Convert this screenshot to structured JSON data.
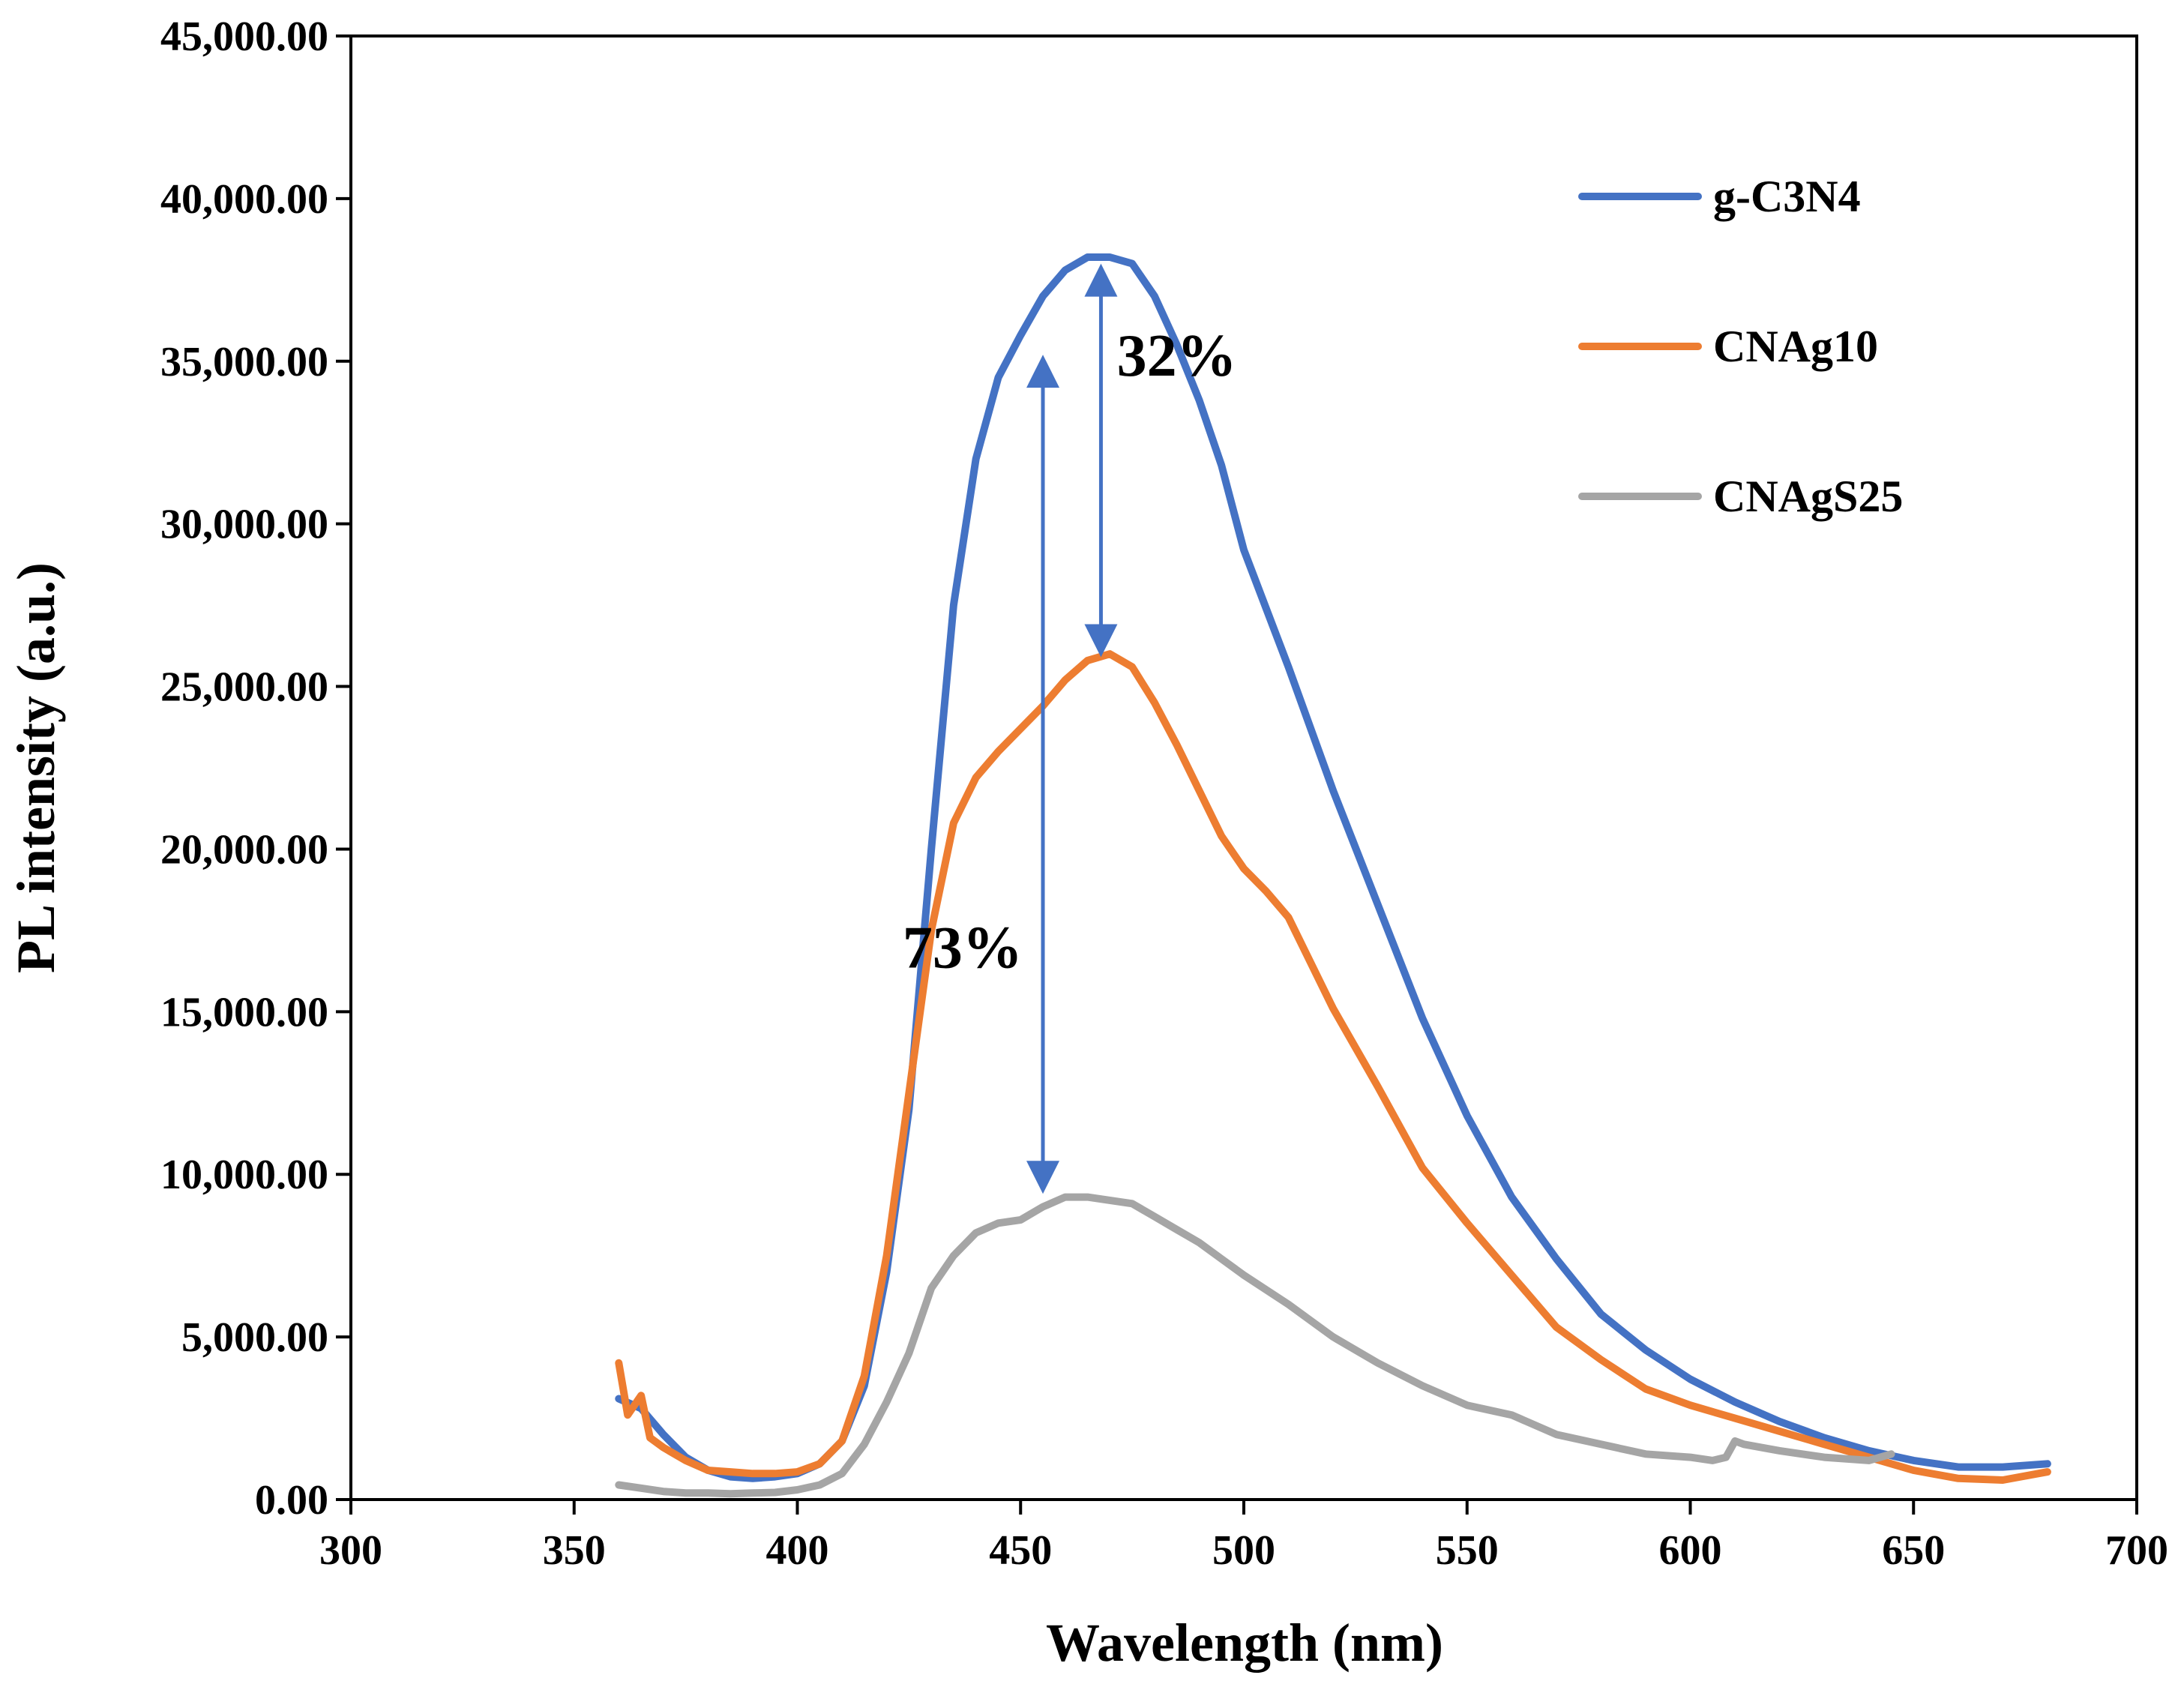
{
  "chart_data": {
    "type": "line",
    "title": "",
    "xlabel": "Wavelength (nm)",
    "ylabel": "PL intensity (a.u.)",
    "xlim": [
      300,
      700
    ],
    "ylim": [
      0,
      45000
    ],
    "xticks": [
      300,
      350,
      400,
      450,
      500,
      550,
      600,
      650,
      700
    ],
    "xtick_labels": [
      "300",
      "350",
      "400",
      "450",
      "500",
      "550",
      "600",
      "650",
      "700"
    ],
    "yticks": [
      0,
      5000,
      10000,
      15000,
      20000,
      25000,
      30000,
      35000,
      40000,
      45000
    ],
    "ytick_labels": [
      "0.00",
      "5,000.00",
      "10,000.00",
      "15,000.00",
      "20,000.00",
      "25,000.00",
      "30,000.00",
      "35,000.00",
      "40,000.00",
      "45,000.00"
    ],
    "grid": false,
    "legend_position": "top-right",
    "series": [
      {
        "name": "g-C3N4",
        "color": "#4472C4",
        "x": [
          360,
          365,
          370,
          375,
          380,
          385,
          390,
          395,
          400,
          405,
          410,
          415,
          420,
          425,
          430,
          435,
          440,
          445,
          450,
          455,
          460,
          465,
          470,
          475,
          480,
          485,
          490,
          495,
          500,
          510,
          520,
          530,
          540,
          550,
          560,
          570,
          580,
          590,
          600,
          610,
          620,
          630,
          640,
          650,
          660,
          670,
          680
        ],
        "y": [
          3100,
          2800,
          2000,
          1300,
          900,
          700,
          650,
          700,
          800,
          1100,
          1800,
          3500,
          7000,
          12000,
          20000,
          27500,
          32000,
          34500,
          35800,
          37000,
          37800,
          38200,
          38200,
          38000,
          37000,
          35500,
          33800,
          31800,
          29200,
          25600,
          21800,
          18300,
          14800,
          11800,
          9300,
          7400,
          5700,
          4600,
          3700,
          3000,
          2400,
          1900,
          1500,
          1200,
          1000,
          1000,
          1100
        ]
      },
      {
        "name": "CNAg10",
        "color": "#ED7D31",
        "x": [
          360,
          362,
          365,
          367,
          370,
          375,
          380,
          385,
          390,
          395,
          400,
          405,
          410,
          415,
          420,
          425,
          430,
          435,
          440,
          445,
          450,
          455,
          460,
          465,
          470,
          475,
          480,
          485,
          490,
          495,
          500,
          505,
          510,
          520,
          530,
          540,
          550,
          560,
          570,
          580,
          590,
          600,
          610,
          620,
          630,
          640,
          650,
          660,
          670,
          680
        ],
        "y": [
          4200,
          2600,
          3200,
          1900,
          1600,
          1200,
          900,
          850,
          800,
          800,
          850,
          1100,
          1800,
          3800,
          7500,
          12500,
          17500,
          20800,
          22200,
          23000,
          23700,
          24400,
          25200,
          25800,
          26000,
          25600,
          24500,
          23200,
          21800,
          20400,
          19400,
          18700,
          17900,
          15100,
          12700,
          10200,
          8500,
          6900,
          5300,
          4300,
          3400,
          2900,
          2500,
          2100,
          1700,
          1300,
          900,
          650,
          600,
          850
        ]
      },
      {
        "name": "CNAgS25",
        "color": "#A5A5A5",
        "x": [
          360,
          365,
          370,
          375,
          380,
          385,
          390,
          395,
          400,
          405,
          410,
          415,
          420,
          425,
          430,
          435,
          440,
          445,
          450,
          455,
          460,
          465,
          470,
          475,
          480,
          485,
          490,
          495,
          500,
          510,
          520,
          530,
          540,
          550,
          560,
          570,
          580,
          590,
          600,
          605,
          608,
          610,
          612,
          620,
          630,
          640,
          645
        ],
        "y": [
          450,
          350,
          250,
          200,
          200,
          180,
          200,
          220,
          300,
          450,
          800,
          1700,
          3000,
          4500,
          6500,
          7500,
          8200,
          8500,
          8600,
          9000,
          9300,
          9300,
          9200,
          9100,
          8700,
          8300,
          7900,
          7400,
          6900,
          6000,
          5000,
          4200,
          3500,
          2900,
          2600,
          2000,
          1700,
          1400,
          1300,
          1200,
          1300,
          1800,
          1700,
          1500,
          1300,
          1200,
          1400
        ]
      }
    ],
    "annotations": [
      {
        "text": "32%",
        "x": 485,
        "y": 35200
      },
      {
        "text": "73%",
        "x": 437,
        "y": 17000
      }
    ],
    "arrows": [
      {
        "x": 468,
        "y_top": 38000,
        "y_bottom": 25900
      },
      {
        "x": 455,
        "y_top": 35200,
        "y_bottom": 9400
      }
    ]
  }
}
